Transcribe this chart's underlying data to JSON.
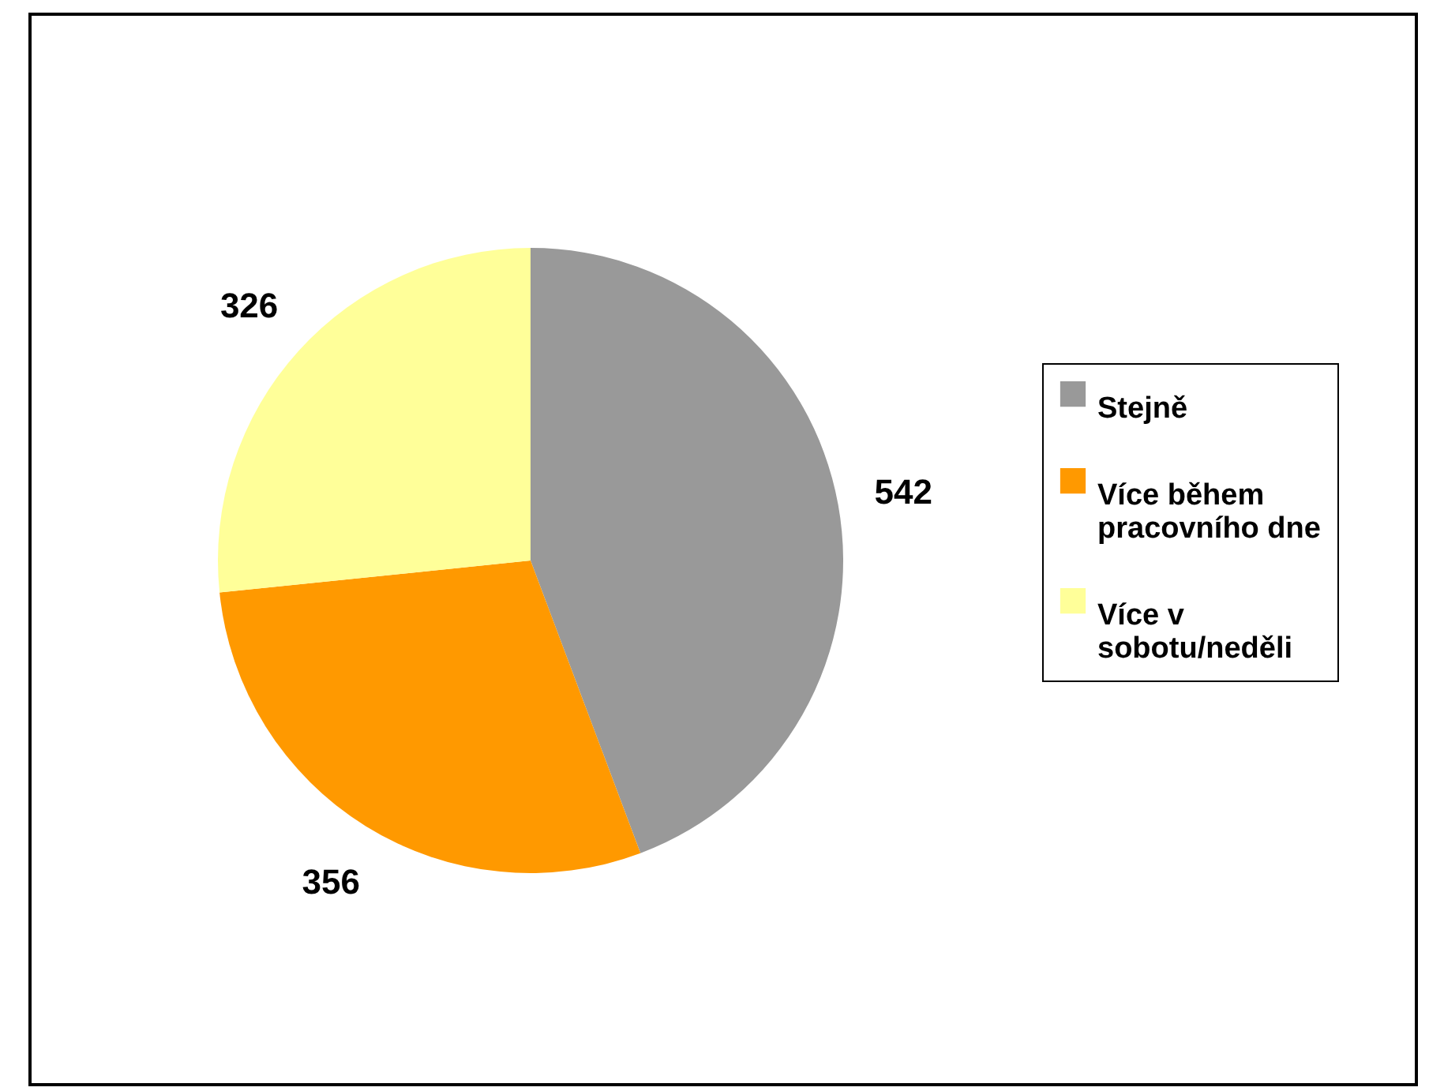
{
  "chart_data": {
    "type": "pie",
    "categories": [
      "Stejně",
      "Více během pracovního dne",
      "Více v sobotu/neděli"
    ],
    "values": [
      542,
      356,
      326
    ],
    "colors": [
      "#999999",
      "#ff9900",
      "#ffff99"
    ],
    "data_labels": true,
    "legend": "right"
  }
}
